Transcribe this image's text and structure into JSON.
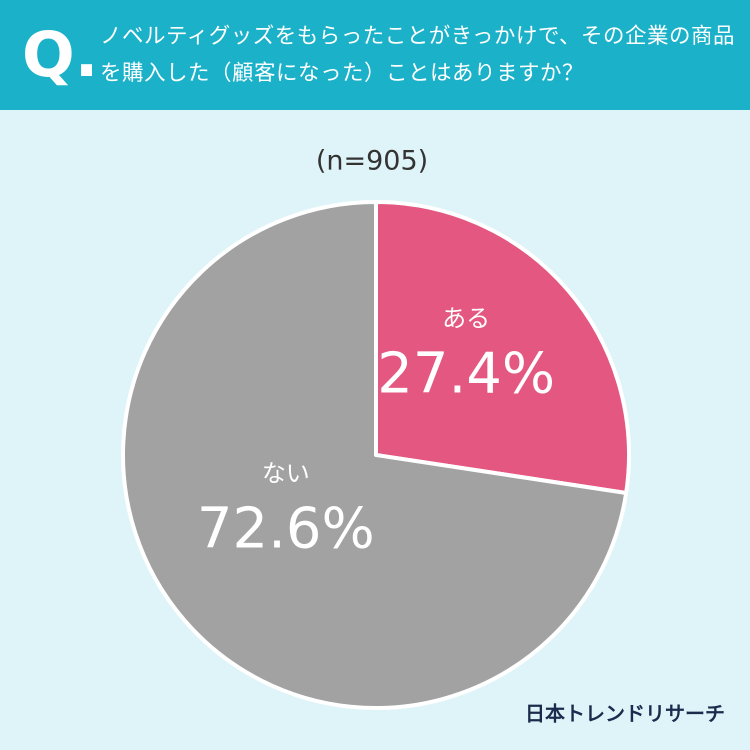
{
  "header": {
    "mark": "Q."
  },
  "chart_data": {
    "type": "pie",
    "title": "ノベルティグッズをもらったことがきっかけで、その企業の商品を購入した（顧客になった）ことはありますか？",
    "subtitle": "(n=905)",
    "categories": [
      "ある",
      "ない"
    ],
    "values": [
      27.4,
      72.6
    ],
    "value_labels": [
      "27.4%",
      "72.6%"
    ],
    "colors": [
      "#e35781",
      "#a2a2a2"
    ]
  },
  "footer": {
    "brand": "日本トレンドリサーチ"
  }
}
